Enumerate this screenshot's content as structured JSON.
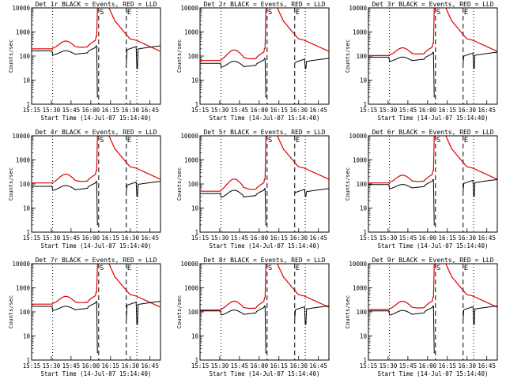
{
  "chart_data": {
    "type": "line",
    "shared": {
      "xlabel": "Start Time (14-Jul-07 15:14:40)",
      "ylabel": "Counts/sec",
      "x_ticks": [
        "15:15",
        "15:30",
        "15:45",
        "16:00",
        "16:15",
        "16:30",
        "16:45"
      ],
      "x_tick_minutes": [
        0,
        15,
        30,
        45,
        60,
        75,
        90
      ],
      "xlim_minutes": [
        0,
        98
      ],
      "y_scale": "log",
      "ylim": [
        1,
        10000
      ],
      "y_ticks": [
        "1",
        "10",
        "100",
        "1000",
        "10000"
      ],
      "y_tick_values": [
        1,
        10,
        100,
        1000,
        10000
      ],
      "series_colors": {
        "events": "#000000",
        "lld": "#e00000"
      },
      "markers": [
        {
          "label": "",
          "x_minutes": 16,
          "style": "dotted"
        },
        {
          "label": "S",
          "x_minutes": 51,
          "style": "dashed"
        },
        {
          "label": "E",
          "x_minutes": 72,
          "style": "dashed"
        },
        {
          "label": "",
          "x_minutes": 80,
          "style": "dotted"
        }
      ]
    },
    "panels": [
      {
        "title": "Det 1r BLACK = Events, RED = LLD",
        "events_base": 165,
        "lld_base": 200,
        "hump": 1.0
      },
      {
        "title": "Det 2r BLACK = Events, RED = LLD",
        "events_base": 50,
        "lld_base": 65,
        "hump": 1.6
      },
      {
        "title": "Det 3r BLACK = Events, RED = LLD",
        "events_base": 90,
        "lld_base": 105,
        "hump": 1.0
      },
      {
        "title": "Det 4r BLACK = Events, RED = LLD",
        "events_base": 80,
        "lld_base": 110,
        "hump": 1.2
      },
      {
        "title": "Det 5r BLACK = Events, RED = LLD",
        "events_base": 40,
        "lld_base": 50,
        "hump": 2.0
      },
      {
        "title": "Det 6r BLACK = Events, RED = LLD",
        "events_base": 95,
        "lld_base": 110,
        "hump": 1.0
      },
      {
        "title": "Det 7r BLACK = Events, RED = LLD",
        "events_base": 170,
        "lld_base": 210,
        "hump": 1.0
      },
      {
        "title": "Det 8r BLACK = Events, RED = LLD",
        "events_base": 110,
        "lld_base": 120,
        "hump": 1.2
      },
      {
        "title": "Det 9r BLACK = Events, RED = LLD",
        "events_base": 110,
        "lld_base": 125,
        "hump": 1.1
      }
    ]
  }
}
